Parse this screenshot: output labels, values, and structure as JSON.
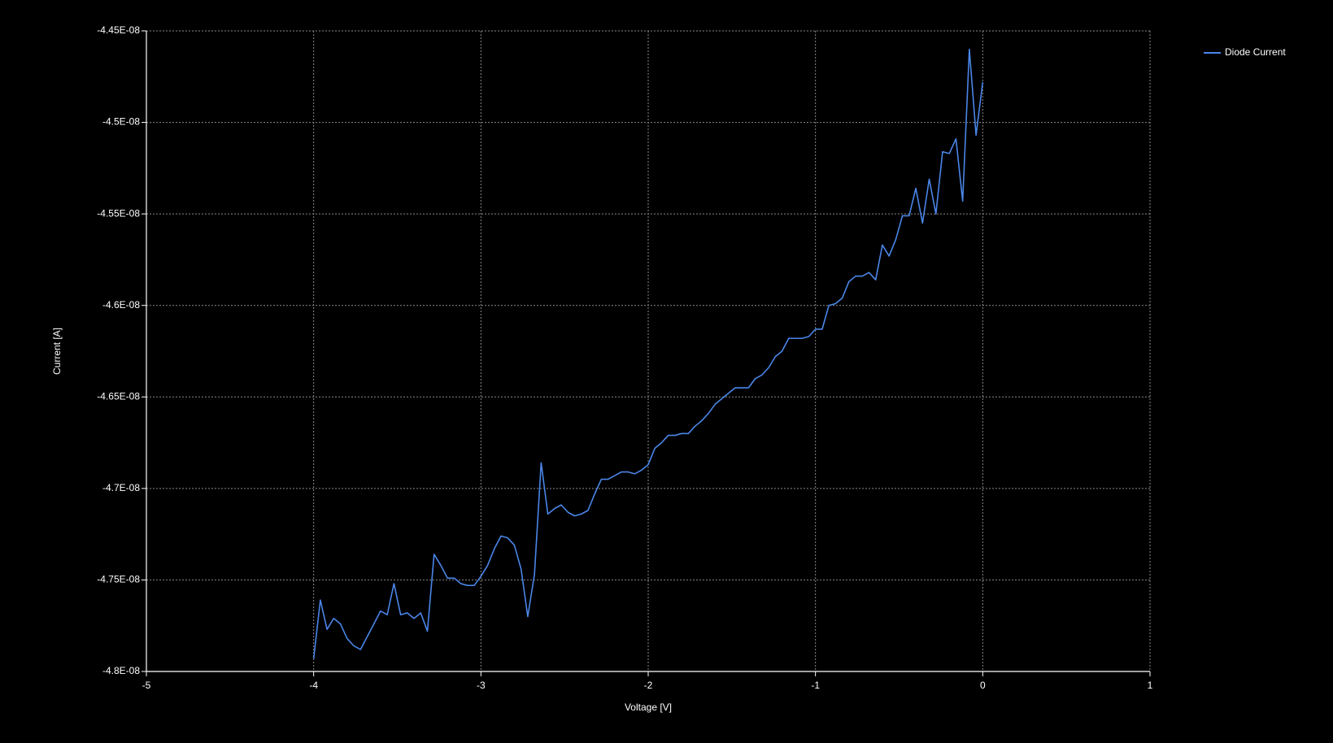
{
  "chart_data": {
    "type": "line",
    "xlabel": "Voltage [V]",
    "ylabel": "Current [A]",
    "xlim": [
      -5,
      1
    ],
    "xticks": [
      -5,
      -4,
      -3,
      -2,
      -1,
      0,
      1
    ],
    "ylim": [
      -4.8e-08,
      -4.45e-08
    ],
    "yticks": [
      {
        "value": -4.8e-08,
        "label": "-4.8E-08"
      },
      {
        "value": -4.75e-08,
        "label": "-4.75E-08"
      },
      {
        "value": -4.7e-08,
        "label": "-4.7E-08"
      },
      {
        "value": -4.65e-08,
        "label": "-4.65E-08"
      },
      {
        "value": -4.6e-08,
        "label": "-4.6E-08"
      },
      {
        "value": -4.55e-08,
        "label": "-4.55E-08"
      },
      {
        "value": -4.5e-08,
        "label": "-4.5E-08"
      },
      {
        "value": -4.45e-08,
        "label": "-4.45E-08"
      }
    ],
    "grid": true,
    "legend": "top-right",
    "x": [
      -4,
      -3.96,
      -3.92,
      -3.88,
      -3.84,
      -3.8,
      -3.76,
      -3.72,
      -3.68,
      -3.64,
      -3.6,
      -3.56,
      -3.52,
      -3.48,
      -3.44,
      -3.4,
      -3.36,
      -3.32,
      -3.28,
      -3.24,
      -3.2,
      -3.16,
      -3.12,
      -3.08,
      -3.04,
      -3,
      -2.96,
      -2.92,
      -2.88,
      -2.84,
      -2.8,
      -2.76,
      -2.72,
      -2.68,
      -2.64,
      -2.6,
      -2.56,
      -2.52,
      -2.48,
      -2.44,
      -2.4,
      -2.36,
      -2.32,
      -2.28,
      -2.24,
      -2.2,
      -2.16,
      -2.12,
      -2.08,
      -2.04,
      -2,
      -1.96,
      -1.92,
      -1.88,
      -1.84,
      -1.8,
      -1.76,
      -1.72,
      -1.68,
      -1.64,
      -1.6,
      -1.56,
      -1.52,
      -1.48,
      -1.44,
      -1.4,
      -1.36,
      -1.32,
      -1.28,
      -1.24,
      -1.2,
      -1.16,
      -1.12,
      -1.08,
      -1.04,
      -1,
      -0.96,
      -0.92,
      -0.88,
      -0.84,
      -0.8,
      -0.76,
      -0.72,
      -0.68,
      -0.64,
      -0.6,
      -0.56,
      -0.52,
      -0.48,
      -0.44,
      -0.4,
      -0.36,
      -0.32,
      -0.28,
      -0.24,
      -0.2,
      -0.16,
      -0.12,
      -0.08,
      -0.04,
      0
    ],
    "series": [
      {
        "name": "Diode Current",
        "color": "#4a86e8",
        "values": [
          -4.793e-08,
          -4.761e-08,
          -4.777e-08,
          -4.771e-08,
          -4.774e-08,
          -4.782e-08,
          -4.786e-08,
          -4.788e-08,
          -4.781e-08,
          -4.774e-08,
          -4.767e-08,
          -4.769e-08,
          -4.752e-08,
          -4.769e-08,
          -4.768e-08,
          -4.771e-08,
          -4.768e-08,
          -4.778e-08,
          -4.736e-08,
          -4.742e-08,
          -4.749e-08,
          -4.749e-08,
          -4.752e-08,
          -4.753e-08,
          -4.753e-08,
          -4.748e-08,
          -4.742e-08,
          -4.733e-08,
          -4.726e-08,
          -4.727e-08,
          -4.731e-08,
          -4.744e-08,
          -4.77e-08,
          -4.747e-08,
          -4.686e-08,
          -4.714e-08,
          -4.711e-08,
          -4.709e-08,
          -4.713e-08,
          -4.715e-08,
          -4.714e-08,
          -4.712e-08,
          -4.703e-08,
          -4.695e-08,
          -4.695e-08,
          -4.693e-08,
          -4.691e-08,
          -4.691e-08,
          -4.692e-08,
          -4.69e-08,
          -4.687e-08,
          -4.678e-08,
          -4.675e-08,
          -4.671e-08,
          -4.671e-08,
          -4.67e-08,
          -4.67e-08,
          -4.666e-08,
          -4.663e-08,
          -4.659e-08,
          -4.654e-08,
          -4.651e-08,
          -4.648e-08,
          -4.645e-08,
          -4.645e-08,
          -4.645e-08,
          -4.64e-08,
          -4.638e-08,
          -4.634e-08,
          -4.628e-08,
          -4.625e-08,
          -4.618e-08,
          -4.618e-08,
          -4.618e-08,
          -4.617e-08,
          -4.613e-08,
          -4.613e-08,
          -4.6e-08,
          -4.599e-08,
          -4.596e-08,
          -4.587e-08,
          -4.584e-08,
          -4.584e-08,
          -4.582e-08,
          -4.586e-08,
          -4.567e-08,
          -4.573e-08,
          -4.564e-08,
          -4.551e-08,
          -4.551e-08,
          -4.536e-08,
          -4.555e-08,
          -4.531e-08,
          -4.55e-08,
          -4.516e-08,
          -4.517e-08,
          -4.509e-08,
          -4.543e-08,
          -4.46e-08,
          -4.507e-08,
          -4.478e-08
        ]
      }
    ]
  }
}
